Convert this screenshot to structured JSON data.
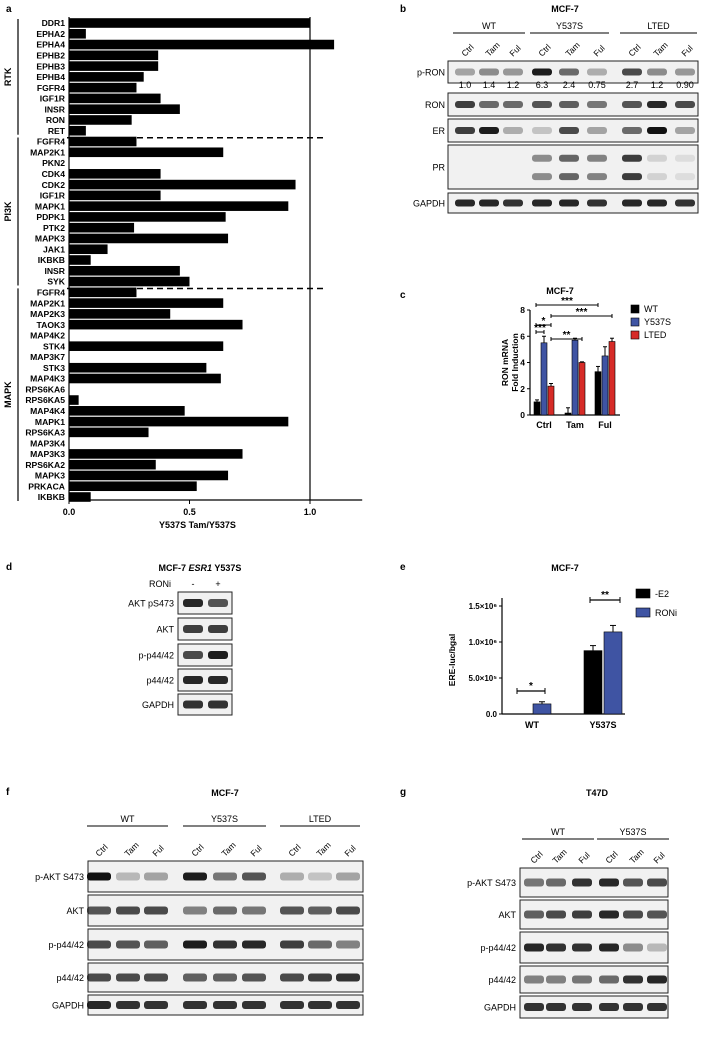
{
  "panel_letters": {
    "a": "a",
    "b": "b",
    "c": "c",
    "d": "d",
    "e": "e",
    "f": "f",
    "g": "g"
  },
  "chart_data": [
    {
      "panel": "a",
      "type": "bar",
      "orientation": "horizontal",
      "xlabel": "Y537S Tam/Y537S",
      "xlim": [
        0,
        1.2
      ],
      "xticks": [
        "0.0",
        "0.5",
        "1.0"
      ],
      "reference_line": 1.0,
      "groups": [
        {
          "name": "RTK",
          "categories": [
            "DDR1",
            "EPHA2",
            "EPHA4",
            "EPHB2",
            "EPHB3",
            "EPHB4",
            "FGFR4",
            "IGF1R",
            "INSR",
            "RON",
            "RET"
          ],
          "values": [
            1.0,
            0.07,
            1.1,
            0.37,
            0.37,
            0.31,
            0.28,
            0.38,
            0.46,
            0.26,
            0.07
          ]
        },
        {
          "name": "PI3K",
          "categories": [
            "FGFR4",
            "MAP2K1",
            "PKN2",
            "CDK4",
            "CDK2",
            "IGF1R",
            "MAPK1",
            "PDPK1",
            "PTK2",
            "MAPK3",
            "JAK1",
            "IKBKB",
            "INSR",
            "SYK"
          ],
          "values": [
            0.28,
            0.64,
            0,
            0.38,
            0.94,
            0.38,
            0.91,
            0.65,
            0.27,
            0.66,
            0.16,
            0.09,
            0.46,
            0.5
          ]
        },
        {
          "name": "MAPK",
          "categories": [
            "FGFR4",
            "MAP2K1",
            "MAP2K3",
            "TAOK3",
            "MAP4K2",
            "STK4",
            "MAP3K7",
            "STK3",
            "MAP4K3",
            "RPS6KA6",
            "RPS6KA5",
            "MAP4K4",
            "MAPK1",
            "RPS6KA3",
            "MAP3K4",
            "MAP3K3",
            "RPS6KA2",
            "MAPK3",
            "PRKACA",
            "IKBKB"
          ],
          "values": [
            0.28,
            0.64,
            0.42,
            0.72,
            0,
            0.64,
            0,
            0.57,
            0.63,
            0,
            0.04,
            0.48,
            0.91,
            0.33,
            0,
            0.72,
            0.36,
            0.66,
            0.53,
            0.09
          ]
        }
      ]
    },
    {
      "panel": "c",
      "type": "bar",
      "title": "MCF-7",
      "ylabel": "RON mRNA Fold Induction",
      "ylim": [
        0,
        8
      ],
      "yticks": [
        "0",
        "2",
        "4",
        "6",
        "8"
      ],
      "categories": [
        "Ctrl",
        "Tam",
        "Ful"
      ],
      "series": [
        {
          "name": "WT",
          "color": "#000000",
          "values": [
            1.0,
            0.15,
            3.3
          ],
          "errors": [
            0.15,
            0.4,
            0.4
          ]
        },
        {
          "name": "Y537S",
          "color": "#3f54a3",
          "values": [
            5.5,
            5.7,
            4.5
          ],
          "errors": [
            0.5,
            0.15,
            0.7
          ]
        },
        {
          "name": "LTED",
          "color": "#d62b27",
          "values": [
            2.2,
            4.0,
            5.6
          ],
          "errors": [
            0.2,
            0.05,
            0.25
          ]
        }
      ],
      "significance": [
        "*",
        "***",
        "**",
        "***",
        "***"
      ]
    },
    {
      "panel": "e",
      "type": "bar",
      "title": "MCF-7",
      "ylabel": "ERE-luc/bgal",
      "ylim": [
        0,
        1500000
      ],
      "yticks": [
        "0.0",
        "5.0×10⁵",
        "1.0×10⁶",
        "1.5×10⁶"
      ],
      "categories": [
        "WT",
        "Y537S"
      ],
      "series": [
        {
          "name": "-E2",
          "color": "#000000",
          "values": [
            0,
            880000
          ],
          "errors": [
            0,
            70000
          ]
        },
        {
          "name": "RONi",
          "color": "#3f54a3",
          "values": [
            140000,
            1140000
          ],
          "errors": [
            30000,
            90000
          ]
        }
      ],
      "significance": [
        "*",
        "**"
      ]
    }
  ],
  "blot_b": {
    "title": "MCF-7",
    "groups": [
      "WT",
      "Y537S",
      "LTED"
    ],
    "lanes": [
      "Ctrl",
      "Tam",
      "Ful",
      "Ctrl",
      "Tam",
      "Ful",
      "Ctrl",
      "Tam",
      "Ful"
    ],
    "rows": [
      "p-RON",
      "RON",
      "ER",
      "PR",
      "GAPDH"
    ],
    "quant": [
      "1.0",
      "1.4",
      "1.2",
      "6.3",
      "2.4",
      "0.75",
      "2.7",
      "1.2",
      "0.90"
    ],
    "intensity": {
      "p-RON": [
        0.35,
        0.45,
        0.4,
        0.95,
        0.6,
        0.3,
        0.75,
        0.45,
        0.4
      ],
      "RON": [
        0.8,
        0.6,
        0.6,
        0.7,
        0.65,
        0.55,
        0.7,
        0.9,
        0.75
      ],
      "ER": [
        0.8,
        0.95,
        0.3,
        0.2,
        0.75,
        0.35,
        0.6,
        1.0,
        0.35
      ],
      "PR": [
        0,
        0,
        0,
        0.5,
        0.7,
        0.55,
        0.9,
        0.15,
        0.1
      ],
      "GAPDH": [
        0.9,
        0.9,
        0.85,
        0.9,
        0.9,
        0.85,
        0.9,
        0.9,
        0.85
      ]
    }
  },
  "blot_d": {
    "title_pre": "MCF-7 ",
    "title_gene": "ESR1",
    "title_post": " Y537S",
    "treatment": "RONi",
    "lanes": [
      "-",
      "+"
    ],
    "rows": [
      "AKT pS473",
      "AKT",
      "p-p44/42",
      "p44/42",
      "GAPDH"
    ],
    "intensity": {
      "AKT pS473": [
        0.9,
        0.7
      ],
      "AKT": [
        0.8,
        0.8
      ],
      "p-p44/42": [
        0.75,
        0.95
      ],
      "p44/42": [
        0.9,
        0.9
      ],
      "GAPDH": [
        0.85,
        0.85
      ]
    }
  },
  "blot_f": {
    "title": "MCF-7",
    "groups": [
      "WT",
      "Y537S",
      "LTED"
    ],
    "lanes": [
      "Ctrl",
      "Tam",
      "Ful",
      "Ctrl",
      "Tam",
      "Ful",
      "Ctrl",
      "Tam",
      "Ful"
    ],
    "rows": [
      "p-AKT S473",
      "AKT",
      "p-p44/42",
      "p44/42",
      "GAPDH"
    ],
    "intensity": {
      "p-AKT S473": [
        1.0,
        0.25,
        0.35,
        0.95,
        0.55,
        0.7,
        0.3,
        0.2,
        0.35
      ],
      "AKT": [
        0.7,
        0.75,
        0.75,
        0.5,
        0.6,
        0.55,
        0.7,
        0.65,
        0.75
      ],
      "p-p44/42": [
        0.75,
        0.7,
        0.65,
        0.95,
        0.85,
        0.9,
        0.8,
        0.6,
        0.5
      ],
      "p44/42": [
        0.75,
        0.75,
        0.75,
        0.65,
        0.65,
        0.7,
        0.75,
        0.8,
        0.85
      ],
      "GAPDH": [
        0.9,
        0.85,
        0.85,
        0.85,
        0.85,
        0.85,
        0.85,
        0.85,
        0.85
      ]
    }
  },
  "blot_g": {
    "title": "T47D",
    "groups": [
      "WT",
      "Y537S"
    ],
    "lanes": [
      "Ctrl",
      "Tam",
      "Ful",
      "Ctrl",
      "Tam",
      "Ful"
    ],
    "rows": [
      "p-AKT S473",
      "AKT",
      "p-p44/42",
      "p44/42",
      "GAPDH"
    ],
    "intensity": {
      "p-AKT S473": [
        0.55,
        0.6,
        0.85,
        0.9,
        0.7,
        0.75
      ],
      "AKT": [
        0.65,
        0.75,
        0.8,
        0.9,
        0.75,
        0.7
      ],
      "p-p44/42": [
        0.9,
        0.85,
        0.85,
        0.9,
        0.45,
        0.25
      ],
      "p44/42": [
        0.5,
        0.5,
        0.55,
        0.6,
        0.85,
        0.9
      ],
      "GAPDH": [
        0.85,
        0.85,
        0.85,
        0.85,
        0.85,
        0.85
      ]
    }
  }
}
